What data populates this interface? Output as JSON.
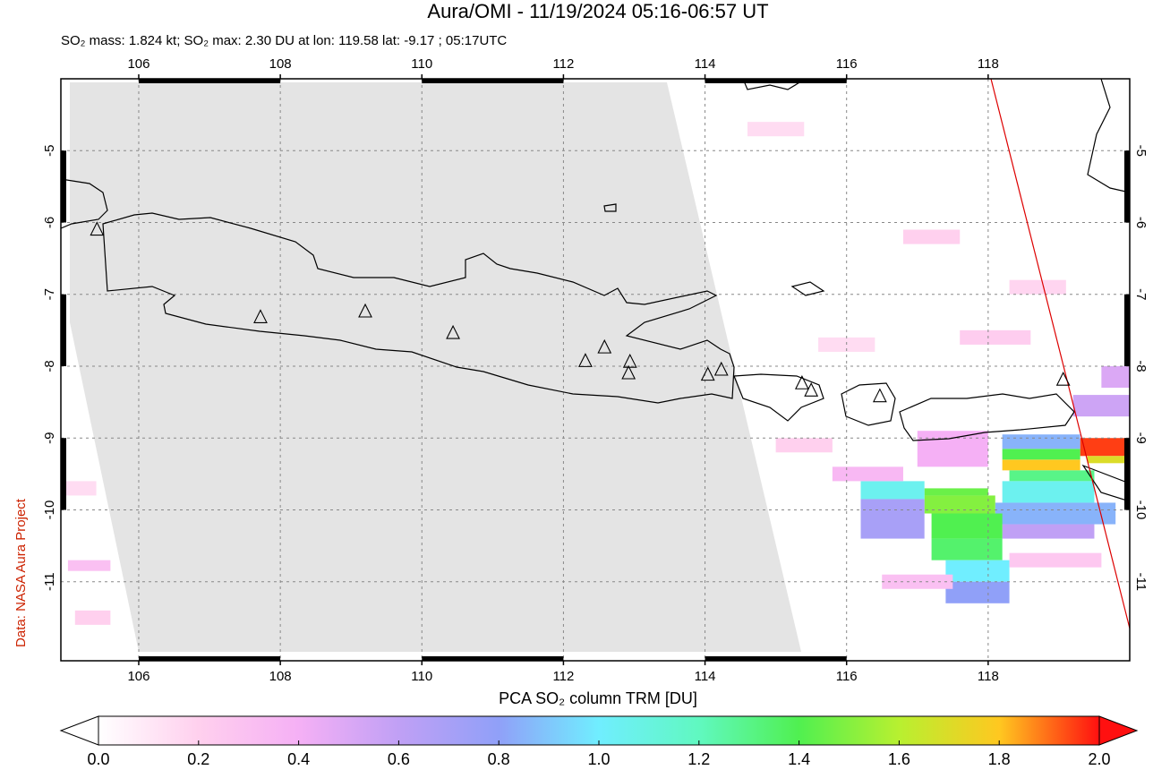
{
  "chart_data": {
    "type": "map",
    "title": "Aura/OMI - 11/19/2024 05:16-06:57 UT",
    "subtitle": "SO₂ mass: 1.824 kt; SO₂ max: 2.30 DU at lon: 119.58 lat: -9.17 ; 05:17UTC",
    "side_note": "Data: NASA Aura Project",
    "xlim": [
      104.9,
      120.0
    ],
    "ylim": [
      -12.1,
      -4.0
    ],
    "xticks": [
      106,
      108,
      110,
      112,
      114,
      116,
      118
    ],
    "yticks": [
      -5,
      -6,
      -7,
      -8,
      -9,
      -10,
      -11
    ],
    "grid": true,
    "volcanoes": {
      "lon": [
        105.41,
        107.72,
        109.2,
        110.44,
        112.31,
        112.58,
        112.94,
        112.92,
        114.04,
        114.23,
        115.37,
        115.5,
        116.47,
        119.06
      ],
      "lat": [
        -6.1,
        -7.32,
        -7.24,
        -7.54,
        -7.93,
        -7.74,
        -7.94,
        -8.1,
        -8.12,
        -8.05,
        -8.24,
        -8.34,
        -8.42,
        -8.19
      ]
    },
    "orbit_track": {
      "lon": [
        118.04,
        120.0
      ],
      "lat": [
        -4.0,
        -11.65
      ],
      "color": "#dd0000"
    },
    "cells": [
      {
        "lon": [
          119.3,
          120.0
        ],
        "lat": [
          -9.0,
          -9.25
        ],
        "value": 1.95
      },
      {
        "lon": [
          119.4,
          120.0
        ],
        "lat": [
          -9.25,
          -9.35
        ],
        "value": 1.7
      },
      {
        "lon": [
          118.2,
          119.3
        ],
        "lat": [
          -9.3,
          -9.45
        ],
        "value": 1.8
      },
      {
        "lon": [
          118.2,
          119.3
        ],
        "lat": [
          -9.15,
          -9.3
        ],
        "value": 1.4
      },
      {
        "lon": [
          118.2,
          119.3
        ],
        "lat": [
          -8.95,
          -9.15
        ],
        "value": 0.85
      },
      {
        "lon": [
          118.3,
          119.5
        ],
        "lat": [
          -9.45,
          -9.6
        ],
        "value": 1.3
      },
      {
        "lon": [
          118.2,
          119.5
        ],
        "lat": [
          -9.6,
          -9.9
        ],
        "value": 1.05
      },
      {
        "lon": [
          118.1,
          119.8
        ],
        "lat": [
          -9.9,
          -10.2
        ],
        "value": 0.85
      },
      {
        "lon": [
          118.2,
          119.5
        ],
        "lat": [
          -10.2,
          -10.4
        ],
        "value": 0.6
      },
      {
        "lon": [
          117.1,
          118.0
        ],
        "lat": [
          -9.7,
          -9.8
        ],
        "value": 1.45
      },
      {
        "lon": [
          117.1,
          118.1
        ],
        "lat": [
          -9.8,
          -10.05
        ],
        "value": 1.5
      },
      {
        "lon": [
          117.2,
          118.2
        ],
        "lat": [
          -10.05,
          -10.4
        ],
        "value": 1.4
      },
      {
        "lon": [
          116.2,
          117.1
        ],
        "lat": [
          -9.6,
          -9.85
        ],
        "value": 1.05
      },
      {
        "lon": [
          116.2,
          117.1
        ],
        "lat": [
          -9.85,
          -10.4
        ],
        "value": 0.7
      },
      {
        "lon": [
          117.2,
          118.2
        ],
        "lat": [
          -10.4,
          -10.7
        ],
        "value": 1.35
      },
      {
        "lon": [
          117.4,
          118.3
        ],
        "lat": [
          -10.7,
          -11.0
        ],
        "value": 1.0
      },
      {
        "lon": [
          117.4,
          118.3
        ],
        "lat": [
          -11.0,
          -11.3
        ],
        "value": 0.8
      },
      {
        "lon": [
          119.2,
          120.0
        ],
        "lat": [
          -8.4,
          -8.7
        ],
        "value": 0.55
      },
      {
        "lon": [
          119.6,
          120.0
        ],
        "lat": [
          -8.0,
          -8.3
        ],
        "value": 0.5
      },
      {
        "lon": [
          117.0,
          118.0
        ],
        "lat": [
          -8.9,
          -9.4
        ],
        "value": 0.4
      },
      {
        "lon": [
          115.8,
          116.8
        ],
        "lat": [
          -9.4,
          -9.6
        ],
        "value": 0.35
      },
      {
        "lon": [
          116.5,
          117.5
        ],
        "lat": [
          -10.9,
          -11.1
        ],
        "value": 0.3
      },
      {
        "lon": [
          118.3,
          119.6
        ],
        "lat": [
          -10.6,
          -10.8
        ],
        "value": 0.25
      },
      {
        "lon": [
          115.0,
          115.8
        ],
        "lat": [
          -9.0,
          -9.2
        ],
        "value": 0.2
      },
      {
        "lon": [
          116.8,
          117.6
        ],
        "lat": [
          -6.1,
          -6.3
        ],
        "value": 0.2
      },
      {
        "lon": [
          118.3,
          119.1
        ],
        "lat": [
          -6.8,
          -7.0
        ],
        "value": 0.18
      },
      {
        "lon": [
          115.6,
          116.4
        ],
        "lat": [
          -7.6,
          -7.8
        ],
        "value": 0.15
      },
      {
        "lon": [
          114.6,
          115.4
        ],
        "lat": [
          -4.6,
          -4.8
        ],
        "value": 0.15
      },
      {
        "lon": [
          117.6,
          118.6
        ],
        "lat": [
          -7.5,
          -7.7
        ],
        "value": 0.22
      },
      {
        "lon": [
          105.0,
          105.6
        ],
        "lat": [
          -10.7,
          -10.85
        ],
        "value": 0.3
      },
      {
        "lon": [
          105.1,
          105.6
        ],
        "lat": [
          -11.4,
          -11.6
        ],
        "value": 0.2
      },
      {
        "lon": [
          104.95,
          105.4
        ],
        "lat": [
          -9.6,
          -9.8
        ],
        "value": 0.15
      }
    ],
    "colorbar": {
      "label": "PCA SO₂ column TRM [DU]",
      "lim": [
        0,
        2.0
      ],
      "ticks": [
        {
          "value": 0,
          "label": "0.0"
        },
        {
          "value": 0.2,
          "label": "0.2"
        },
        {
          "value": 0.4,
          "label": "0.4"
        },
        {
          "value": 0.6,
          "label": "0.6"
        },
        {
          "value": 0.8,
          "label": "0.8"
        },
        {
          "value": 1.0,
          "label": "1.0"
        },
        {
          "value": 1.2,
          "label": "1.2"
        },
        {
          "value": 1.4,
          "label": "1.4"
        },
        {
          "value": 1.6,
          "label": "1.6"
        },
        {
          "value": 1.8,
          "label": "1.8"
        },
        {
          "value": 2.0,
          "label": "2.0"
        }
      ],
      "colors": [
        "#ffffff",
        "#ffd0ee",
        "#f5b0f5",
        "#c0a0f5",
        "#90a0f8",
        "#70eeff",
        "#60f8c0",
        "#50f050",
        "#b8f030",
        "#ffc820",
        "#ff1010"
      ]
    }
  }
}
